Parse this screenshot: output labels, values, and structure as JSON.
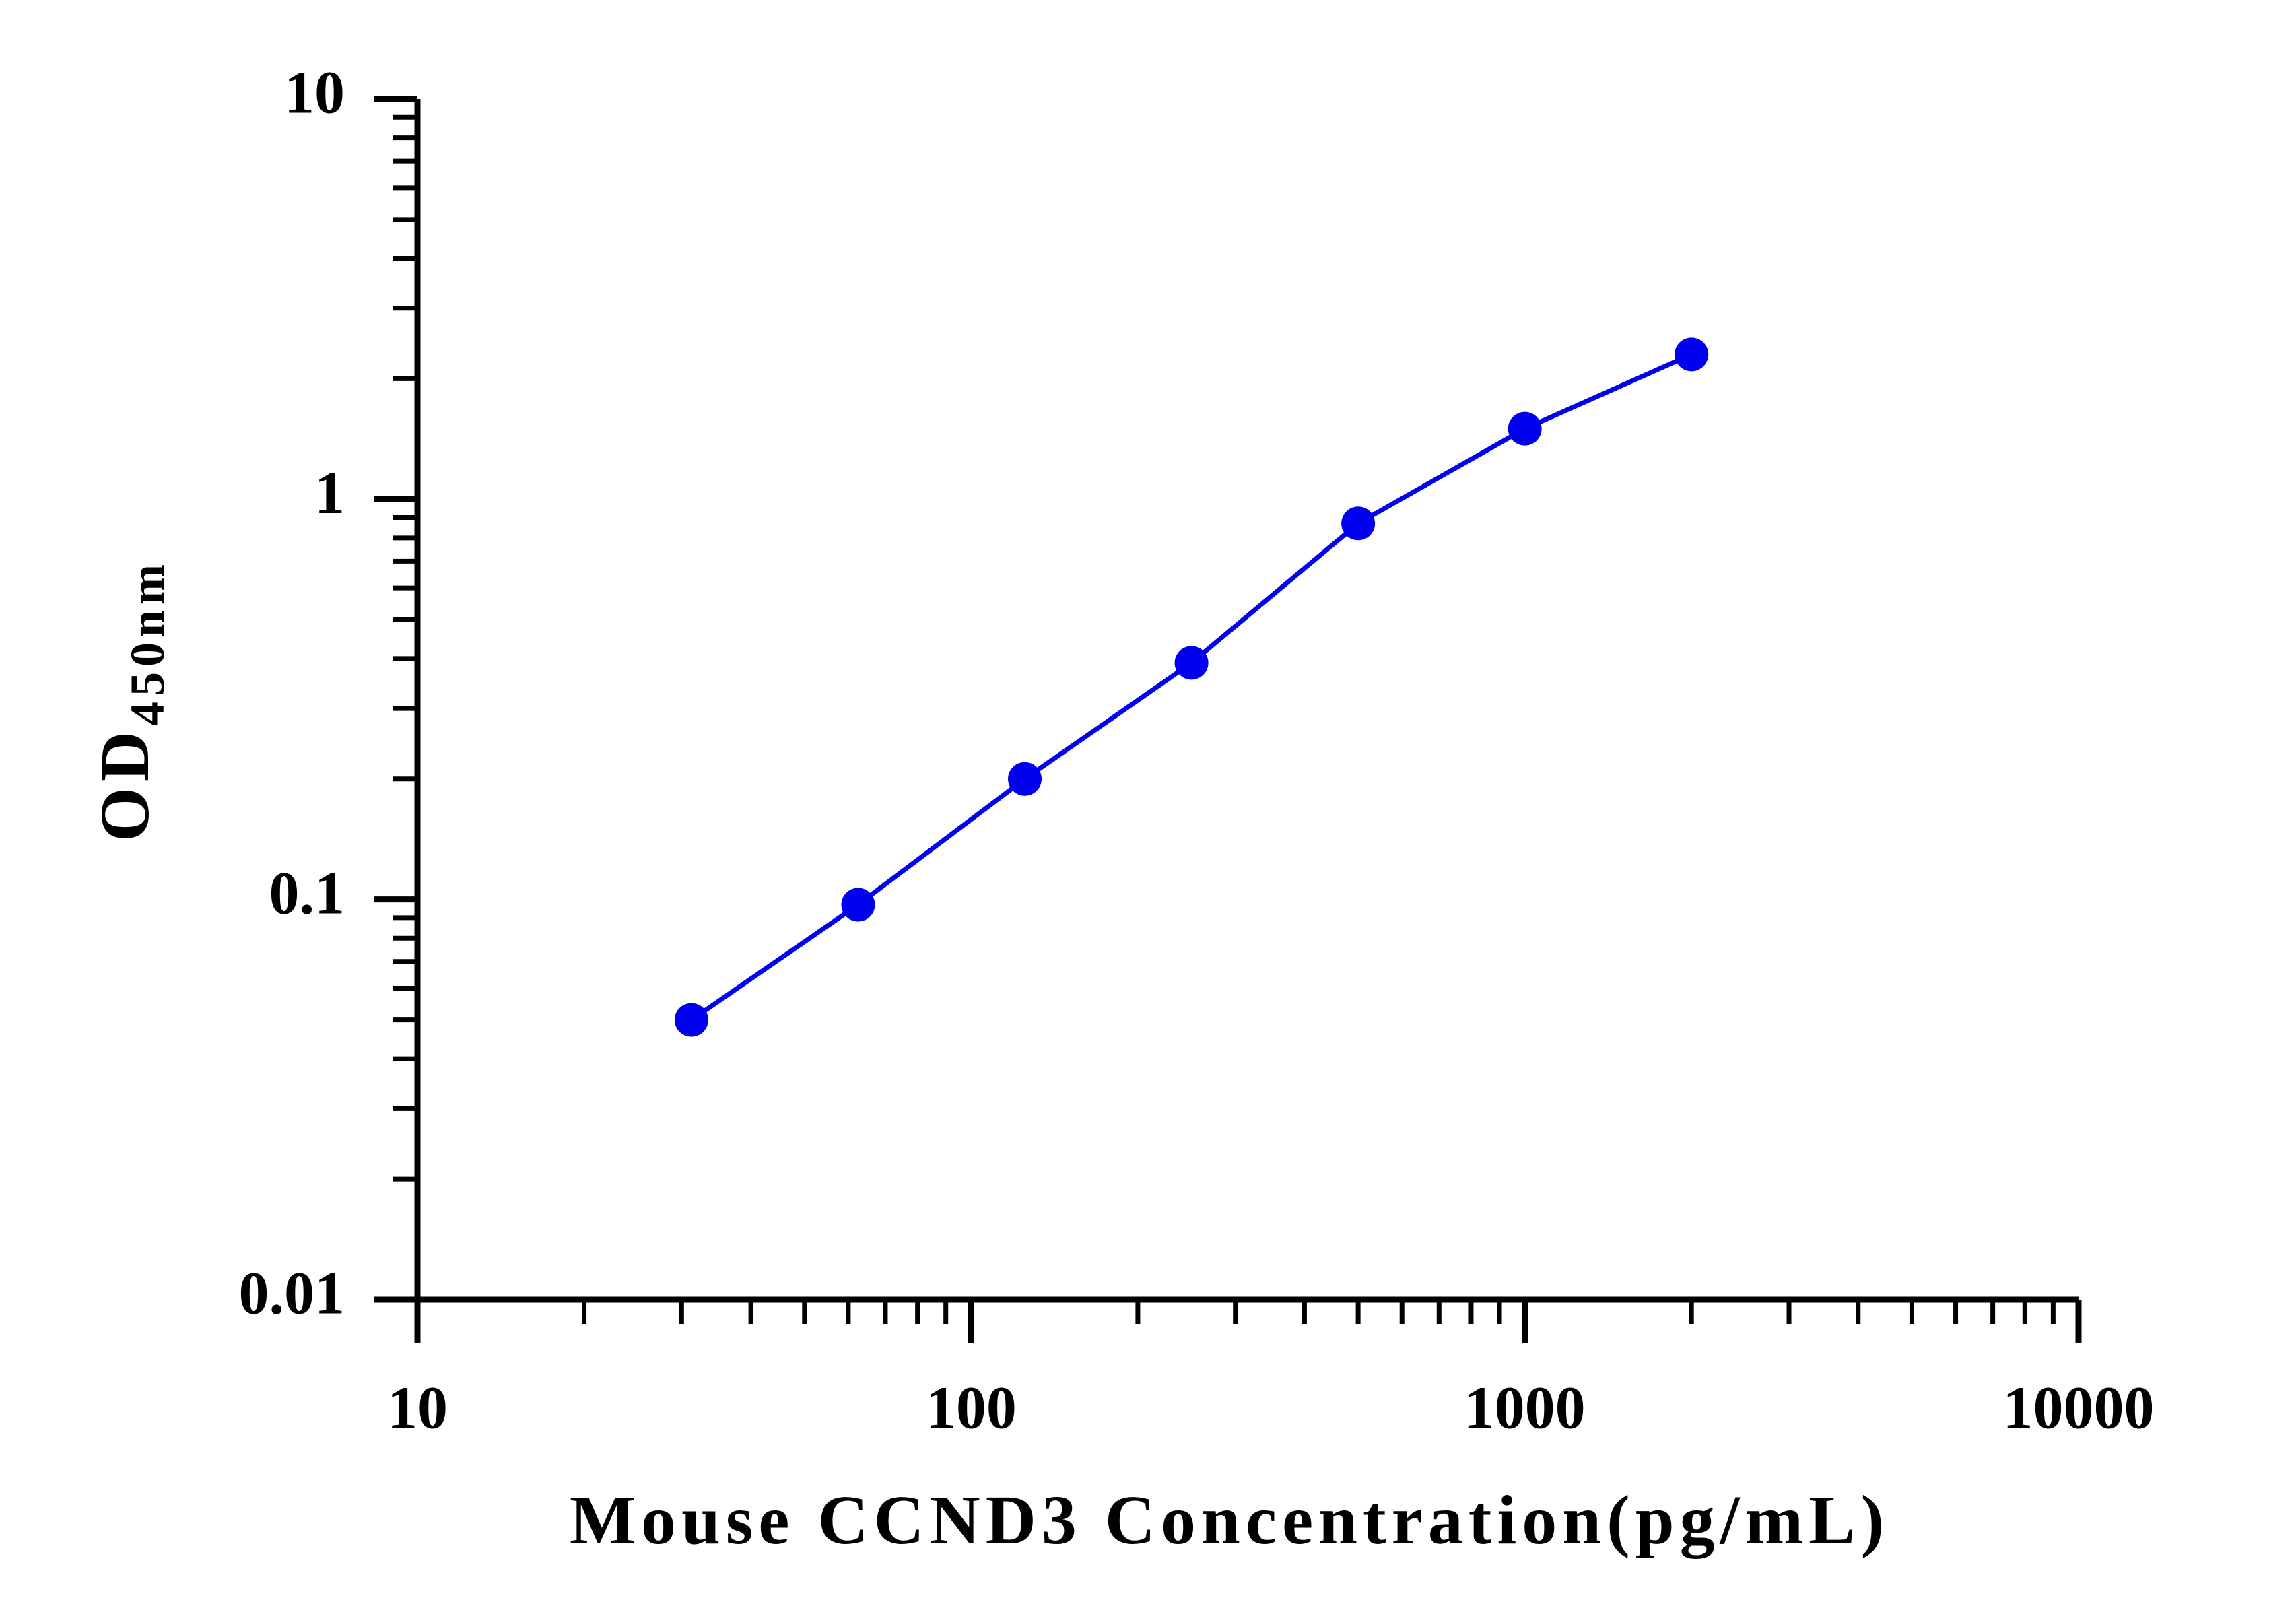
{
  "chart_data": {
    "type": "line",
    "x_label": "Mouse CCND3 Concentration(pg/mL)",
    "y_label": "OD",
    "y_label_subscript": "450nm",
    "x": [
      31.25,
      62.5,
      125,
      250,
      500,
      1000,
      2000
    ],
    "series": [
      {
        "color": "#0000ee",
        "values": [
          0.05,
          0.097,
          0.2,
          0.39,
          0.87,
          1.5,
          2.3
        ]
      }
    ],
    "xlim": [
      10,
      10000
    ],
    "xticks": [
      10,
      100,
      1000,
      10000
    ],
    "ylim": [
      0.01,
      10
    ],
    "yticks": [
      0.01,
      0.1,
      1,
      10
    ],
    "xlog": true,
    "ylog": true,
    "minor_ticks": true
  }
}
